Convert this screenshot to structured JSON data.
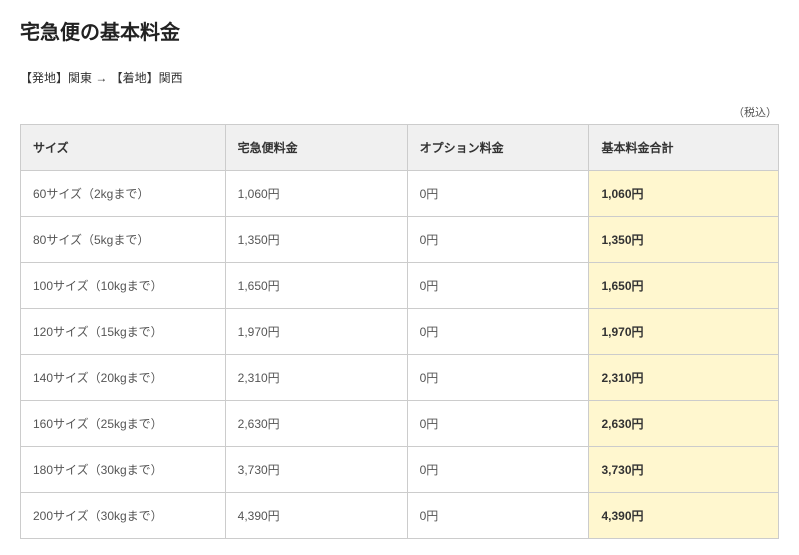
{
  "title": "宅急便の基本料金",
  "route": "【発地】関東 → 【着地】関西",
  "tax_note": "（税込）",
  "table": {
    "columns": [
      "サイズ",
      "宅急便料金",
      "オプション料金",
      "基本料金合計"
    ],
    "rows": [
      {
        "size": "60サイズ（2kgまで）",
        "base": "1,060円",
        "option": "0円",
        "total": "1,060円"
      },
      {
        "size": "80サイズ（5kgまで）",
        "base": "1,350円",
        "option": "0円",
        "total": "1,350円"
      },
      {
        "size": "100サイズ（10kgまで）",
        "base": "1,650円",
        "option": "0円",
        "total": "1,650円"
      },
      {
        "size": "120サイズ（15kgまで）",
        "base": "1,970円",
        "option": "0円",
        "total": "1,970円"
      },
      {
        "size": "140サイズ（20kgまで）",
        "base": "2,310円",
        "option": "0円",
        "total": "2,310円"
      },
      {
        "size": "160サイズ（25kgまで）",
        "base": "2,630円",
        "option": "0円",
        "total": "2,630円"
      },
      {
        "size": "180サイズ（30kgまで）",
        "base": "3,730円",
        "option": "0円",
        "total": "3,730円"
      },
      {
        "size": "200サイズ（30kgまで）",
        "base": "4,390円",
        "option": "0円",
        "total": "4,390円"
      }
    ]
  },
  "style": {
    "header_bg": "#f0f0f0",
    "total_col_bg": "#fff7cf",
    "border_color": "#cccccc",
    "title_fontsize_pt": 15,
    "cell_fontsize_pt": 9,
    "title_color": "#222222",
    "text_color": "#333333",
    "muted_text_color": "#555555",
    "background_color": "#ffffff"
  }
}
